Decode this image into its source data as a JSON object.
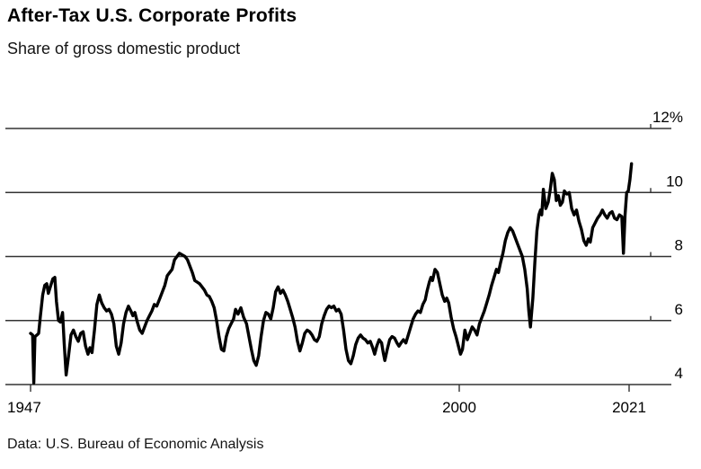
{
  "chart_data": {
    "type": "line",
    "title": "After-Tax U.S. Corporate Profits",
    "subtitle": "Share of gross domestic product",
    "source": "Data: U.S. Bureau of Economic Analysis",
    "xlabel": "",
    "ylabel": "",
    "unit": "% of GDP",
    "xlim": [
      1947,
      2021.3
    ],
    "ylim": [
      4,
      12
    ],
    "grid": "horizontal",
    "legend": "none",
    "background": "#ffffff",
    "line_color": "#000000",
    "grid_color": "#333333",
    "y_ticks": [
      {
        "value": 12,
        "label": "12%"
      },
      {
        "value": 10,
        "label": "10"
      },
      {
        "value": 8,
        "label": "8"
      },
      {
        "value": 6,
        "label": "6"
      },
      {
        "value": 4,
        "label": "4"
      }
    ],
    "x_ticks": [
      {
        "value": 1947,
        "label": "1947"
      },
      {
        "value": 2000,
        "label": "2000"
      },
      {
        "value": 2021,
        "label": "2021"
      }
    ],
    "series": [
      {
        "name": "After-tax corporate profits, share of GDP (%)",
        "points": [
          [
            1947.0,
            5.6
          ],
          [
            1947.25,
            5.55
          ],
          [
            1947.4,
            4.05
          ],
          [
            1947.55,
            5.5
          ],
          [
            1947.8,
            5.55
          ],
          [
            1948.0,
            5.6
          ],
          [
            1948.2,
            6.1
          ],
          [
            1948.5,
            6.8
          ],
          [
            1948.75,
            7.1
          ],
          [
            1949.0,
            7.15
          ],
          [
            1949.2,
            6.85
          ],
          [
            1949.5,
            7.1
          ],
          [
            1949.75,
            7.3
          ],
          [
            1950.0,
            7.35
          ],
          [
            1950.2,
            6.6
          ],
          [
            1950.45,
            6.0
          ],
          [
            1950.7,
            5.95
          ],
          [
            1950.95,
            6.25
          ],
          [
            1951.15,
            5.3
          ],
          [
            1951.4,
            4.3
          ],
          [
            1951.7,
            4.9
          ],
          [
            1952.0,
            5.55
          ],
          [
            1952.3,
            5.7
          ],
          [
            1952.6,
            5.5
          ],
          [
            1952.9,
            5.35
          ],
          [
            1953.2,
            5.6
          ],
          [
            1953.5,
            5.65
          ],
          [
            1953.8,
            5.2
          ],
          [
            1954.1,
            4.95
          ],
          [
            1954.35,
            5.15
          ],
          [
            1954.6,
            5.0
          ],
          [
            1954.9,
            5.7
          ],
          [
            1955.2,
            6.5
          ],
          [
            1955.5,
            6.8
          ],
          [
            1955.8,
            6.55
          ],
          [
            1956.1,
            6.4
          ],
          [
            1956.4,
            6.3
          ],
          [
            1956.7,
            6.35
          ],
          [
            1957.0,
            6.2
          ],
          [
            1957.3,
            5.9
          ],
          [
            1957.6,
            5.2
          ],
          [
            1957.9,
            4.95
          ],
          [
            1958.2,
            5.3
          ],
          [
            1958.5,
            5.9
          ],
          [
            1958.8,
            6.25
          ],
          [
            1959.1,
            6.45
          ],
          [
            1959.4,
            6.3
          ],
          [
            1959.65,
            6.15
          ],
          [
            1959.9,
            6.25
          ],
          [
            1960.2,
            5.95
          ],
          [
            1960.5,
            5.7
          ],
          [
            1960.8,
            5.6
          ],
          [
            1961.1,
            5.8
          ],
          [
            1961.4,
            6.0
          ],
          [
            1961.7,
            6.15
          ],
          [
            1962.0,
            6.3
          ],
          [
            1962.3,
            6.5
          ],
          [
            1962.6,
            6.45
          ],
          [
            1963.0,
            6.7
          ],
          [
            1963.3,
            6.9
          ],
          [
            1963.6,
            7.1
          ],
          [
            1963.9,
            7.4
          ],
          [
            1964.2,
            7.5
          ],
          [
            1964.5,
            7.6
          ],
          [
            1964.8,
            7.9
          ],
          [
            1965.1,
            8.0
          ],
          [
            1965.4,
            8.1
          ],
          [
            1965.75,
            8.05
          ],
          [
            1966.1,
            8.0
          ],
          [
            1966.4,
            7.9
          ],
          [
            1966.7,
            7.7
          ],
          [
            1967.0,
            7.5
          ],
          [
            1967.3,
            7.25
          ],
          [
            1967.6,
            7.2
          ],
          [
            1967.9,
            7.15
          ],
          [
            1968.2,
            7.05
          ],
          [
            1968.5,
            6.95
          ],
          [
            1968.8,
            6.8
          ],
          [
            1969.1,
            6.75
          ],
          [
            1969.4,
            6.6
          ],
          [
            1969.7,
            6.4
          ],
          [
            1970.0,
            6.0
          ],
          [
            1970.3,
            5.5
          ],
          [
            1970.6,
            5.1
          ],
          [
            1970.9,
            5.05
          ],
          [
            1971.2,
            5.5
          ],
          [
            1971.5,
            5.75
          ],
          [
            1971.8,
            5.9
          ],
          [
            1972.1,
            6.05
          ],
          [
            1972.35,
            6.35
          ],
          [
            1972.65,
            6.2
          ],
          [
            1973.0,
            6.4
          ],
          [
            1973.35,
            6.1
          ],
          [
            1973.7,
            5.9
          ],
          [
            1974.0,
            5.5
          ],
          [
            1974.3,
            5.1
          ],
          [
            1974.6,
            4.75
          ],
          [
            1974.9,
            4.6
          ],
          [
            1975.2,
            4.9
          ],
          [
            1975.5,
            5.5
          ],
          [
            1975.8,
            6.0
          ],
          [
            1976.1,
            6.25
          ],
          [
            1976.4,
            6.2
          ],
          [
            1976.7,
            6.05
          ],
          [
            1977.0,
            6.4
          ],
          [
            1977.3,
            6.9
          ],
          [
            1977.6,
            7.05
          ],
          [
            1977.9,
            6.85
          ],
          [
            1978.2,
            6.95
          ],
          [
            1978.5,
            6.8
          ],
          [
            1978.8,
            6.6
          ],
          [
            1979.1,
            6.35
          ],
          [
            1979.4,
            6.1
          ],
          [
            1979.7,
            5.8
          ],
          [
            1980.0,
            5.35
          ],
          [
            1980.3,
            5.05
          ],
          [
            1980.6,
            5.3
          ],
          [
            1980.9,
            5.6
          ],
          [
            1981.2,
            5.7
          ],
          [
            1981.5,
            5.65
          ],
          [
            1981.8,
            5.55
          ],
          [
            1982.1,
            5.4
          ],
          [
            1982.4,
            5.35
          ],
          [
            1982.7,
            5.5
          ],
          [
            1983.0,
            5.9
          ],
          [
            1983.3,
            6.15
          ],
          [
            1983.6,
            6.35
          ],
          [
            1983.9,
            6.45
          ],
          [
            1984.2,
            6.4
          ],
          [
            1984.5,
            6.45
          ],
          [
            1984.8,
            6.3
          ],
          [
            1985.1,
            6.35
          ],
          [
            1985.4,
            6.2
          ],
          [
            1985.7,
            5.7
          ],
          [
            1986.0,
            5.1
          ],
          [
            1986.3,
            4.75
          ],
          [
            1986.6,
            4.65
          ],
          [
            1986.9,
            4.9
          ],
          [
            1987.2,
            5.25
          ],
          [
            1987.5,
            5.45
          ],
          [
            1987.8,
            5.55
          ],
          [
            1988.1,
            5.45
          ],
          [
            1988.4,
            5.4
          ],
          [
            1988.7,
            5.3
          ],
          [
            1989.0,
            5.35
          ],
          [
            1989.3,
            5.15
          ],
          [
            1989.55,
            4.95
          ],
          [
            1989.8,
            5.2
          ],
          [
            1990.1,
            5.4
          ],
          [
            1990.4,
            5.3
          ],
          [
            1990.6,
            5.0
          ],
          [
            1990.8,
            4.75
          ],
          [
            1991.1,
            5.1
          ],
          [
            1991.4,
            5.4
          ],
          [
            1991.7,
            5.5
          ],
          [
            1992.0,
            5.45
          ],
          [
            1992.3,
            5.3
          ],
          [
            1992.55,
            5.2
          ],
          [
            1992.8,
            5.3
          ],
          [
            1993.1,
            5.4
          ],
          [
            1993.4,
            5.3
          ],
          [
            1993.7,
            5.55
          ],
          [
            1994.0,
            5.8
          ],
          [
            1994.3,
            6.05
          ],
          [
            1994.6,
            6.2
          ],
          [
            1994.9,
            6.3
          ],
          [
            1995.2,
            6.25
          ],
          [
            1995.5,
            6.5
          ],
          [
            1995.8,
            6.65
          ],
          [
            1996.0,
            6.9
          ],
          [
            1996.3,
            7.2
          ],
          [
            1996.5,
            7.35
          ],
          [
            1996.7,
            7.25
          ],
          [
            1997.0,
            7.6
          ],
          [
            1997.3,
            7.5
          ],
          [
            1997.6,
            7.15
          ],
          [
            1997.9,
            6.8
          ],
          [
            1998.2,
            6.6
          ],
          [
            1998.45,
            6.7
          ],
          [
            1998.7,
            6.55
          ],
          [
            1999.0,
            6.1
          ],
          [
            1999.3,
            5.75
          ],
          [
            1999.6,
            5.5
          ],
          [
            1999.9,
            5.2
          ],
          [
            2000.15,
            4.95
          ],
          [
            2000.4,
            5.1
          ],
          [
            2000.7,
            5.7
          ],
          [
            2001.0,
            5.4
          ],
          [
            2001.3,
            5.6
          ],
          [
            2001.6,
            5.8
          ],
          [
            2001.9,
            5.7
          ],
          [
            2002.2,
            5.55
          ],
          [
            2002.5,
            5.9
          ],
          [
            2002.8,
            6.1
          ],
          [
            2003.1,
            6.3
          ],
          [
            2003.4,
            6.55
          ],
          [
            2003.7,
            6.8
          ],
          [
            2004.0,
            7.1
          ],
          [
            2004.3,
            7.35
          ],
          [
            2004.6,
            7.6
          ],
          [
            2004.85,
            7.5
          ],
          [
            2005.1,
            7.8
          ],
          [
            2005.4,
            8.1
          ],
          [
            2005.7,
            8.5
          ],
          [
            2006.0,
            8.75
          ],
          [
            2006.3,
            8.9
          ],
          [
            2006.6,
            8.8
          ],
          [
            2006.9,
            8.6
          ],
          [
            2007.2,
            8.4
          ],
          [
            2007.5,
            8.2
          ],
          [
            2007.8,
            8.0
          ],
          [
            2008.1,
            7.6
          ],
          [
            2008.4,
            7.0
          ],
          [
            2008.6,
            6.3
          ],
          [
            2008.8,
            5.8
          ],
          [
            2009.1,
            6.7
          ],
          [
            2009.35,
            7.8
          ],
          [
            2009.6,
            8.8
          ],
          [
            2009.85,
            9.3
          ],
          [
            2010.05,
            9.45
          ],
          [
            2010.2,
            9.3
          ],
          [
            2010.4,
            10.1
          ],
          [
            2010.7,
            9.5
          ],
          [
            2011.0,
            9.7
          ],
          [
            2011.25,
            10.1
          ],
          [
            2011.5,
            10.6
          ],
          [
            2011.75,
            10.4
          ],
          [
            2012.0,
            9.75
          ],
          [
            2012.25,
            9.9
          ],
          [
            2012.5,
            9.6
          ],
          [
            2012.75,
            9.7
          ],
          [
            2013.0,
            10.05
          ],
          [
            2013.3,
            9.95
          ],
          [
            2013.6,
            10.0
          ],
          [
            2013.9,
            9.5
          ],
          [
            2014.2,
            9.3
          ],
          [
            2014.5,
            9.45
          ],
          [
            2014.8,
            9.1
          ],
          [
            2015.1,
            8.85
          ],
          [
            2015.4,
            8.5
          ],
          [
            2015.7,
            8.35
          ],
          [
            2015.95,
            8.55
          ],
          [
            2016.2,
            8.45
          ],
          [
            2016.5,
            8.9
          ],
          [
            2016.8,
            9.05
          ],
          [
            2017.1,
            9.2
          ],
          [
            2017.4,
            9.3
          ],
          [
            2017.7,
            9.45
          ],
          [
            2018.0,
            9.3
          ],
          [
            2018.3,
            9.2
          ],
          [
            2018.6,
            9.35
          ],
          [
            2018.9,
            9.4
          ],
          [
            2019.2,
            9.2
          ],
          [
            2019.5,
            9.15
          ],
          [
            2019.8,
            9.3
          ],
          [
            2020.1,
            9.25
          ],
          [
            2020.3,
            8.1
          ],
          [
            2020.5,
            9.3
          ],
          [
            2020.7,
            10.0
          ],
          [
            2020.9,
            10.05
          ],
          [
            2021.1,
            10.4
          ],
          [
            2021.3,
            10.9
          ]
        ]
      }
    ]
  }
}
